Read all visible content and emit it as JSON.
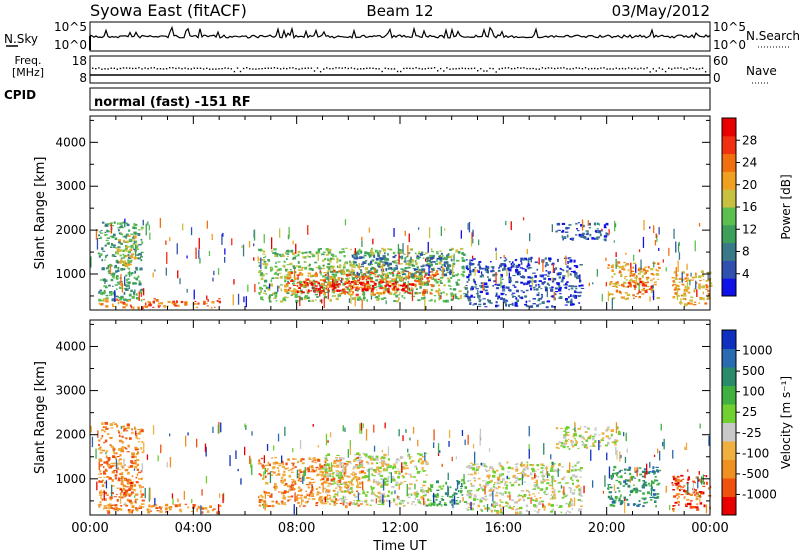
{
  "header": {
    "title_left": "Syowa East (fitACF)",
    "title_center": "Beam 12",
    "title_right": "03/May/2012"
  },
  "status_panels": {
    "nsky_label": "N.Sky",
    "nsearch_label": "N.Search",
    "freq_label_line1": "Freq.",
    "freq_label_line2": "[MHz]",
    "nave_label": "Nave",
    "cpid_label": "CPID",
    "cpid_text": "normal (fast) -151 RF",
    "noise_ticks": [
      "10^5",
      "10^0"
    ],
    "freq_ticks": [
      "18",
      "8"
    ],
    "nave_ticks": [
      "60",
      "0"
    ]
  },
  "chart_data": [
    {
      "type": "heatmap",
      "name": "power",
      "ylabel": "Slant Range [km]",
      "xlabel": "",
      "xlim": [
        "00:00",
        "00:00"
      ],
      "ylim": [
        180,
        4600
      ],
      "yticks": [
        "1000",
        "2000",
        "3000",
        "4000"
      ],
      "colorbar": {
        "label": "Power [dB]",
        "ticks": [
          "4",
          "8",
          "12",
          "16",
          "20",
          "24",
          "28"
        ],
        "colors": [
          "#1010e8",
          "#3050b0",
          "#3a7a88",
          "#3ca05a",
          "#5cc050",
          "#c8c040",
          "#f0a020",
          "#f07010",
          "#f03010",
          "#e80000"
        ]
      },
      "regions": [
        {
          "t0": 0.3,
          "t1": 2.0,
          "r0": 400,
          "r1": 2200,
          "level": 3
        },
        {
          "t0": 1.0,
          "t1": 1.8,
          "r0": 1200,
          "r1": 1900,
          "level": 5
        },
        {
          "t0": 0.3,
          "t1": 5.0,
          "r0": 250,
          "r1": 450,
          "level": 7
        },
        {
          "t0": 6.5,
          "t1": 14.5,
          "r0": 400,
          "r1": 1600,
          "level": 4
        },
        {
          "t0": 7.5,
          "t1": 13.5,
          "r0": 550,
          "r1": 1100,
          "level": 7
        },
        {
          "t0": 8.0,
          "t1": 12.5,
          "r0": 600,
          "r1": 850,
          "level": 9
        },
        {
          "t0": 10.0,
          "t1": 14.0,
          "r0": 1000,
          "r1": 1500,
          "level": 2
        },
        {
          "t0": 14.5,
          "t1": 19.0,
          "r0": 250,
          "r1": 1400,
          "level": 1
        },
        {
          "t0": 18.0,
          "t1": 20.0,
          "r0": 1800,
          "r1": 2200,
          "level": 1
        },
        {
          "t0": 20.0,
          "t1": 22.0,
          "r0": 450,
          "r1": 1300,
          "level": 6
        },
        {
          "t0": 20.8,
          "t1": 21.8,
          "r0": 600,
          "r1": 850,
          "level": 8
        },
        {
          "t0": 22.5,
          "t1": 24.0,
          "r0": 300,
          "r1": 1100,
          "level": 6
        }
      ]
    },
    {
      "type": "heatmap",
      "name": "velocity",
      "ylabel": "Slant Range [km]",
      "xlabel": "Time UT",
      "xticks": [
        "00:00",
        "04:00",
        "08:00",
        "12:00",
        "16:00",
        "20:00",
        "00:00"
      ],
      "ylim": [
        180,
        4600
      ],
      "yticks": [
        "1000",
        "2000",
        "3000",
        "4000"
      ],
      "colorbar": {
        "label": "Velocity [m s⁻¹]",
        "ticks": [
          "1000",
          "500",
          "100",
          "25",
          "-25",
          "-100",
          "-500",
          "-1000"
        ],
        "colors": [
          "#1030c0",
          "#2a6ab0",
          "#2a8a6a",
          "#40b040",
          "#70d030",
          "#c8c8c8",
          "#f0b040",
          "#f09020",
          "#f05010",
          "#e80000"
        ]
      },
      "regions": [
        {
          "t0": 0.3,
          "t1": 2.0,
          "r0": 300,
          "r1": 2300,
          "level": 7
        },
        {
          "t0": 1.0,
          "t1": 1.6,
          "r0": 600,
          "r1": 1000,
          "level": 8
        },
        {
          "t0": 0.3,
          "t1": 5.0,
          "r0": 250,
          "r1": 450,
          "level": 7
        },
        {
          "t0": 6.5,
          "t1": 10.5,
          "r0": 400,
          "r1": 1500,
          "level": 7
        },
        {
          "t0": 9.0,
          "t1": 13.0,
          "r0": 400,
          "r1": 1600,
          "level": 5
        },
        {
          "t0": 13.0,
          "t1": 14.5,
          "r0": 400,
          "r1": 1000,
          "level": 3
        },
        {
          "t0": 14.5,
          "t1": 19.0,
          "r0": 250,
          "r1": 1400,
          "level": 5
        },
        {
          "t0": 18.0,
          "t1": 20.5,
          "r0": 1700,
          "r1": 2200,
          "level": 5
        },
        {
          "t0": 20.0,
          "t1": 22.0,
          "r0": 400,
          "r1": 1300,
          "level": 2
        },
        {
          "t0": 22.5,
          "t1": 24.0,
          "r0": 300,
          "r1": 1100,
          "level": 8
        }
      ]
    }
  ]
}
